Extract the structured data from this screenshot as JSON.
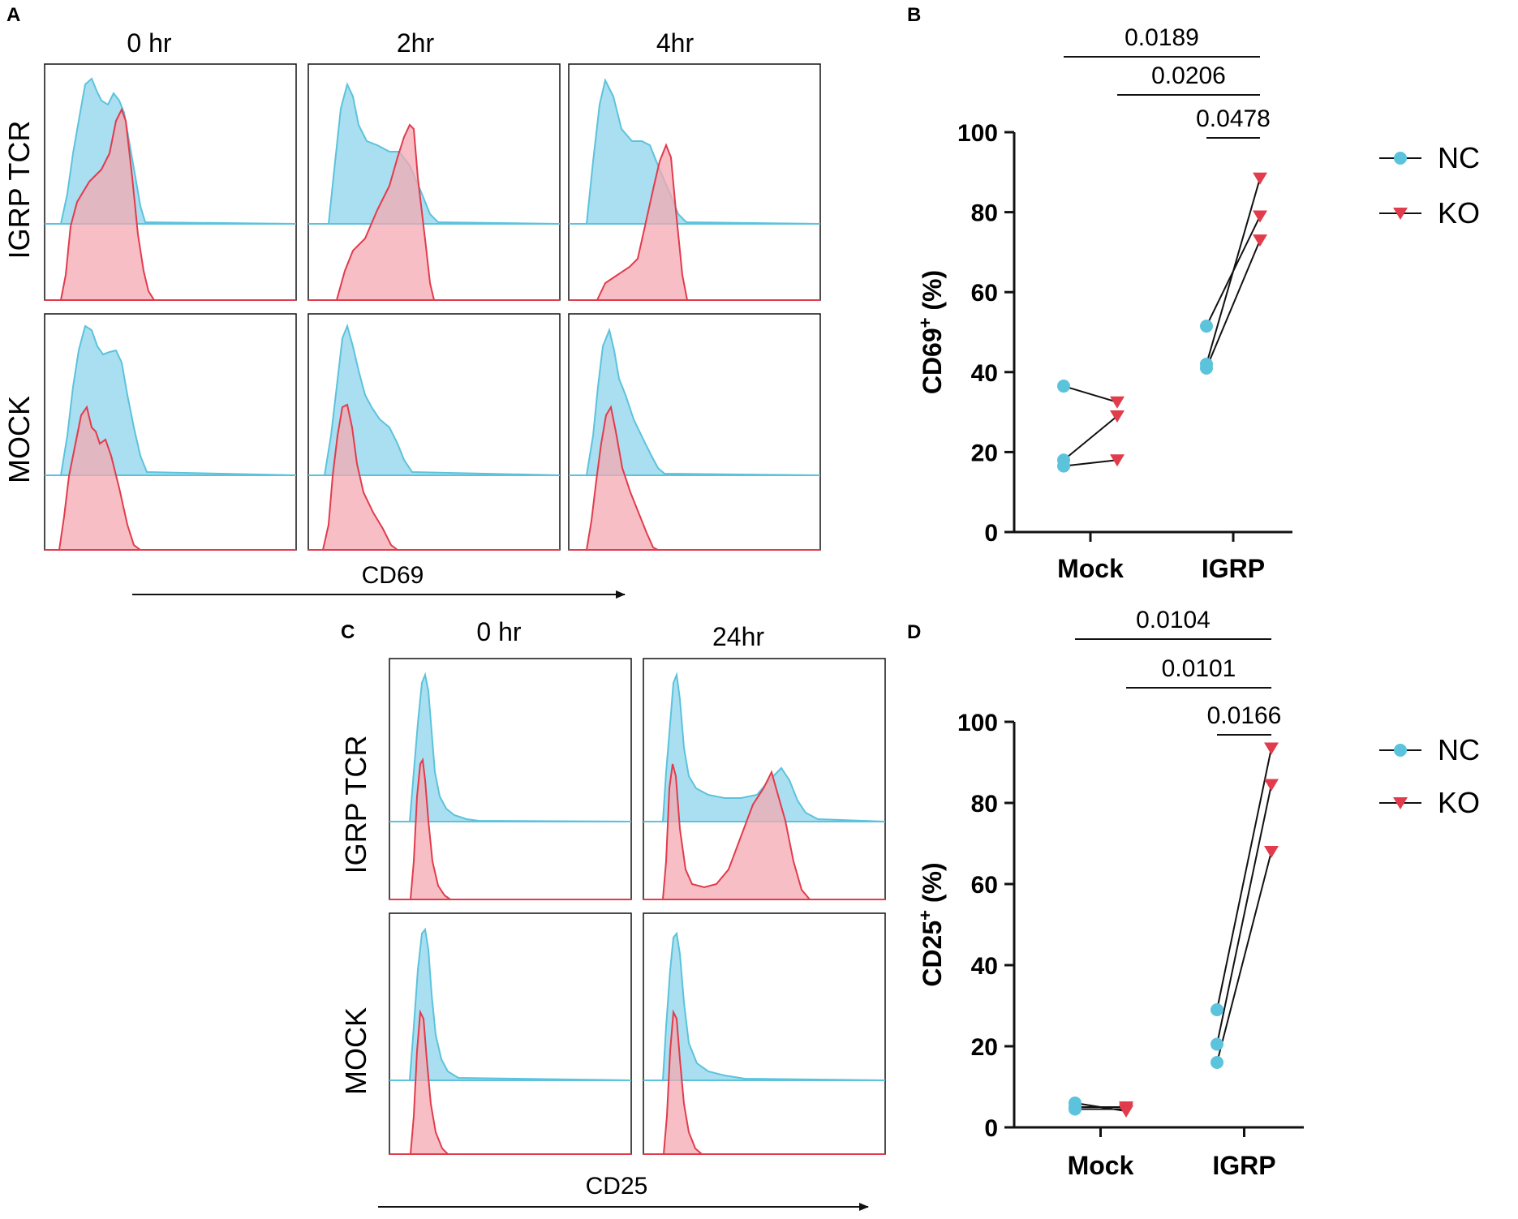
{
  "panels": {
    "A": "A",
    "B": "B",
    "C": "C",
    "D": "D"
  },
  "colors": {
    "nc": "#5bc3dc",
    "nc_fill": "#a9dff0",
    "ko": "#e23b4c",
    "ko_fill": "#f4aab2",
    "line": "#111111"
  },
  "flow_A": {
    "type": "histogram-grid",
    "columns": [
      "0 hr",
      "2hr",
      "4hr"
    ],
    "rows": [
      "IGRP TCR",
      "MOCK"
    ],
    "xlabel": "CD69",
    "series": [
      "NC",
      "KO"
    ]
  },
  "flow_C": {
    "type": "histogram-grid",
    "columns": [
      "0 hr",
      "24hr"
    ],
    "rows": [
      "IGRP TCR",
      "MOCK"
    ],
    "xlabel": "CD25",
    "series": [
      "NC",
      "KO"
    ]
  },
  "chart_data": [
    {
      "panel": "B",
      "type": "scatter",
      "categories": [
        "Mock",
        "IGRP"
      ],
      "ylabel_main": "CD69",
      "ylabel_sup": "+",
      "ylabel_unit": " (%)",
      "ylim": [
        0,
        100
      ],
      "yticks": [
        0,
        20,
        40,
        60,
        80,
        100
      ],
      "series": [
        {
          "name": "NC",
          "marker": "circle",
          "Mock": [
            36.5,
            18,
            16.5
          ],
          "IGRP": [
            51.5,
            42,
            41
          ]
        },
        {
          "name": "KO",
          "marker": "triangle-down",
          "Mock": [
            32.5,
            29,
            18
          ],
          "IGRP": [
            88.5,
            79,
            73
          ]
        }
      ],
      "pairs": [
        [
          36.5,
          32.5
        ],
        [
          18,
          29
        ],
        [
          16.5,
          18
        ]
      ],
      "pairs_igrp": [
        [
          51.5,
          79
        ],
        [
          42,
          88.5
        ],
        [
          41,
          73
        ]
      ],
      "pvalues": [
        {
          "label": "0.0189",
          "from": "Mock-NC",
          "to": "IGRP-KO"
        },
        {
          "label": "0.0206",
          "from": "Mock-KO",
          "to": "IGRP-KO"
        },
        {
          "label": "0.0478",
          "from": "IGRP-NC",
          "to": "IGRP-KO"
        }
      ],
      "legend": [
        "NC",
        "KO"
      ]
    },
    {
      "panel": "D",
      "type": "scatter",
      "categories": [
        "Mock",
        "IGRP"
      ],
      "ylabel_main": "CD25",
      "ylabel_sup": "+",
      "ylabel_unit": " (%)",
      "ylim": [
        0,
        100
      ],
      "yticks": [
        0,
        20,
        40,
        60,
        80,
        100
      ],
      "series": [
        {
          "name": "NC",
          "marker": "circle",
          "Mock": [
            6,
            5,
            4.5
          ],
          "IGRP": [
            29,
            20.5,
            16
          ]
        },
        {
          "name": "KO",
          "marker": "triangle-down",
          "Mock": [
            5,
            4.5,
            4
          ],
          "IGRP": [
            93.5,
            84.5,
            68
          ]
        }
      ],
      "pairs": [
        [
          6,
          4
        ],
        [
          5,
          5
        ],
        [
          4.5,
          4.5
        ]
      ],
      "pairs_igrp": [
        [
          29,
          93.5
        ],
        [
          20.5,
          84.5
        ],
        [
          16,
          68
        ]
      ],
      "pvalues": [
        {
          "label": "0.0104",
          "from": "Mock-NC",
          "to": "IGRP-KO"
        },
        {
          "label": "0.0101",
          "from": "Mock-KO",
          "to": "IGRP-KO"
        },
        {
          "label": "0.0166",
          "from": "IGRP-NC",
          "to": "IGRP-KO"
        }
      ],
      "legend": [
        "NC",
        "KO"
      ]
    }
  ]
}
